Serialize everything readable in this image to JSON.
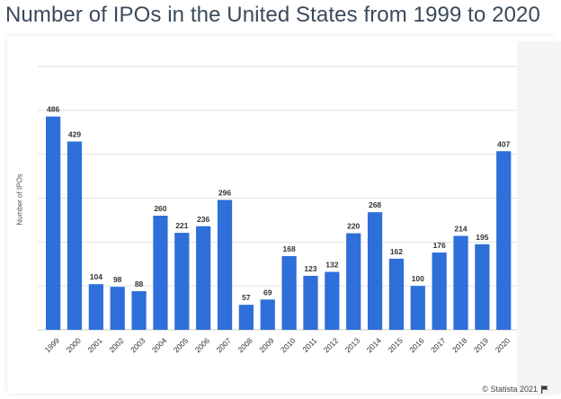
{
  "title": "Number of IPOs in the United States from 1999 to 2020",
  "credit": "© Statista 2021",
  "colors": {
    "bar": "#2e6fd9",
    "grid": "#e2e2e2",
    "label": "#333333",
    "tick": "#333333"
  },
  "chart_data": {
    "type": "bar",
    "title": "Number of IPOs in the United States from 1999 to 2020",
    "xlabel": "",
    "ylabel": "Number of IPOs",
    "ylim": [
      0,
      600
    ],
    "grid": true,
    "categories": [
      "1999",
      "2000",
      "2001",
      "2002",
      "2003",
      "2004",
      "2005",
      "2006",
      "2007",
      "2008",
      "2009",
      "2010",
      "2011",
      "2012",
      "2013",
      "2014",
      "2015",
      "2016",
      "2017",
      "2018",
      "2019",
      "2020"
    ],
    "values": [
      486,
      429,
      104,
      98,
      88,
      260,
      221,
      236,
      296,
      57,
      69,
      168,
      123,
      132,
      220,
      268,
      162,
      100,
      176,
      214,
      195,
      407
    ]
  }
}
